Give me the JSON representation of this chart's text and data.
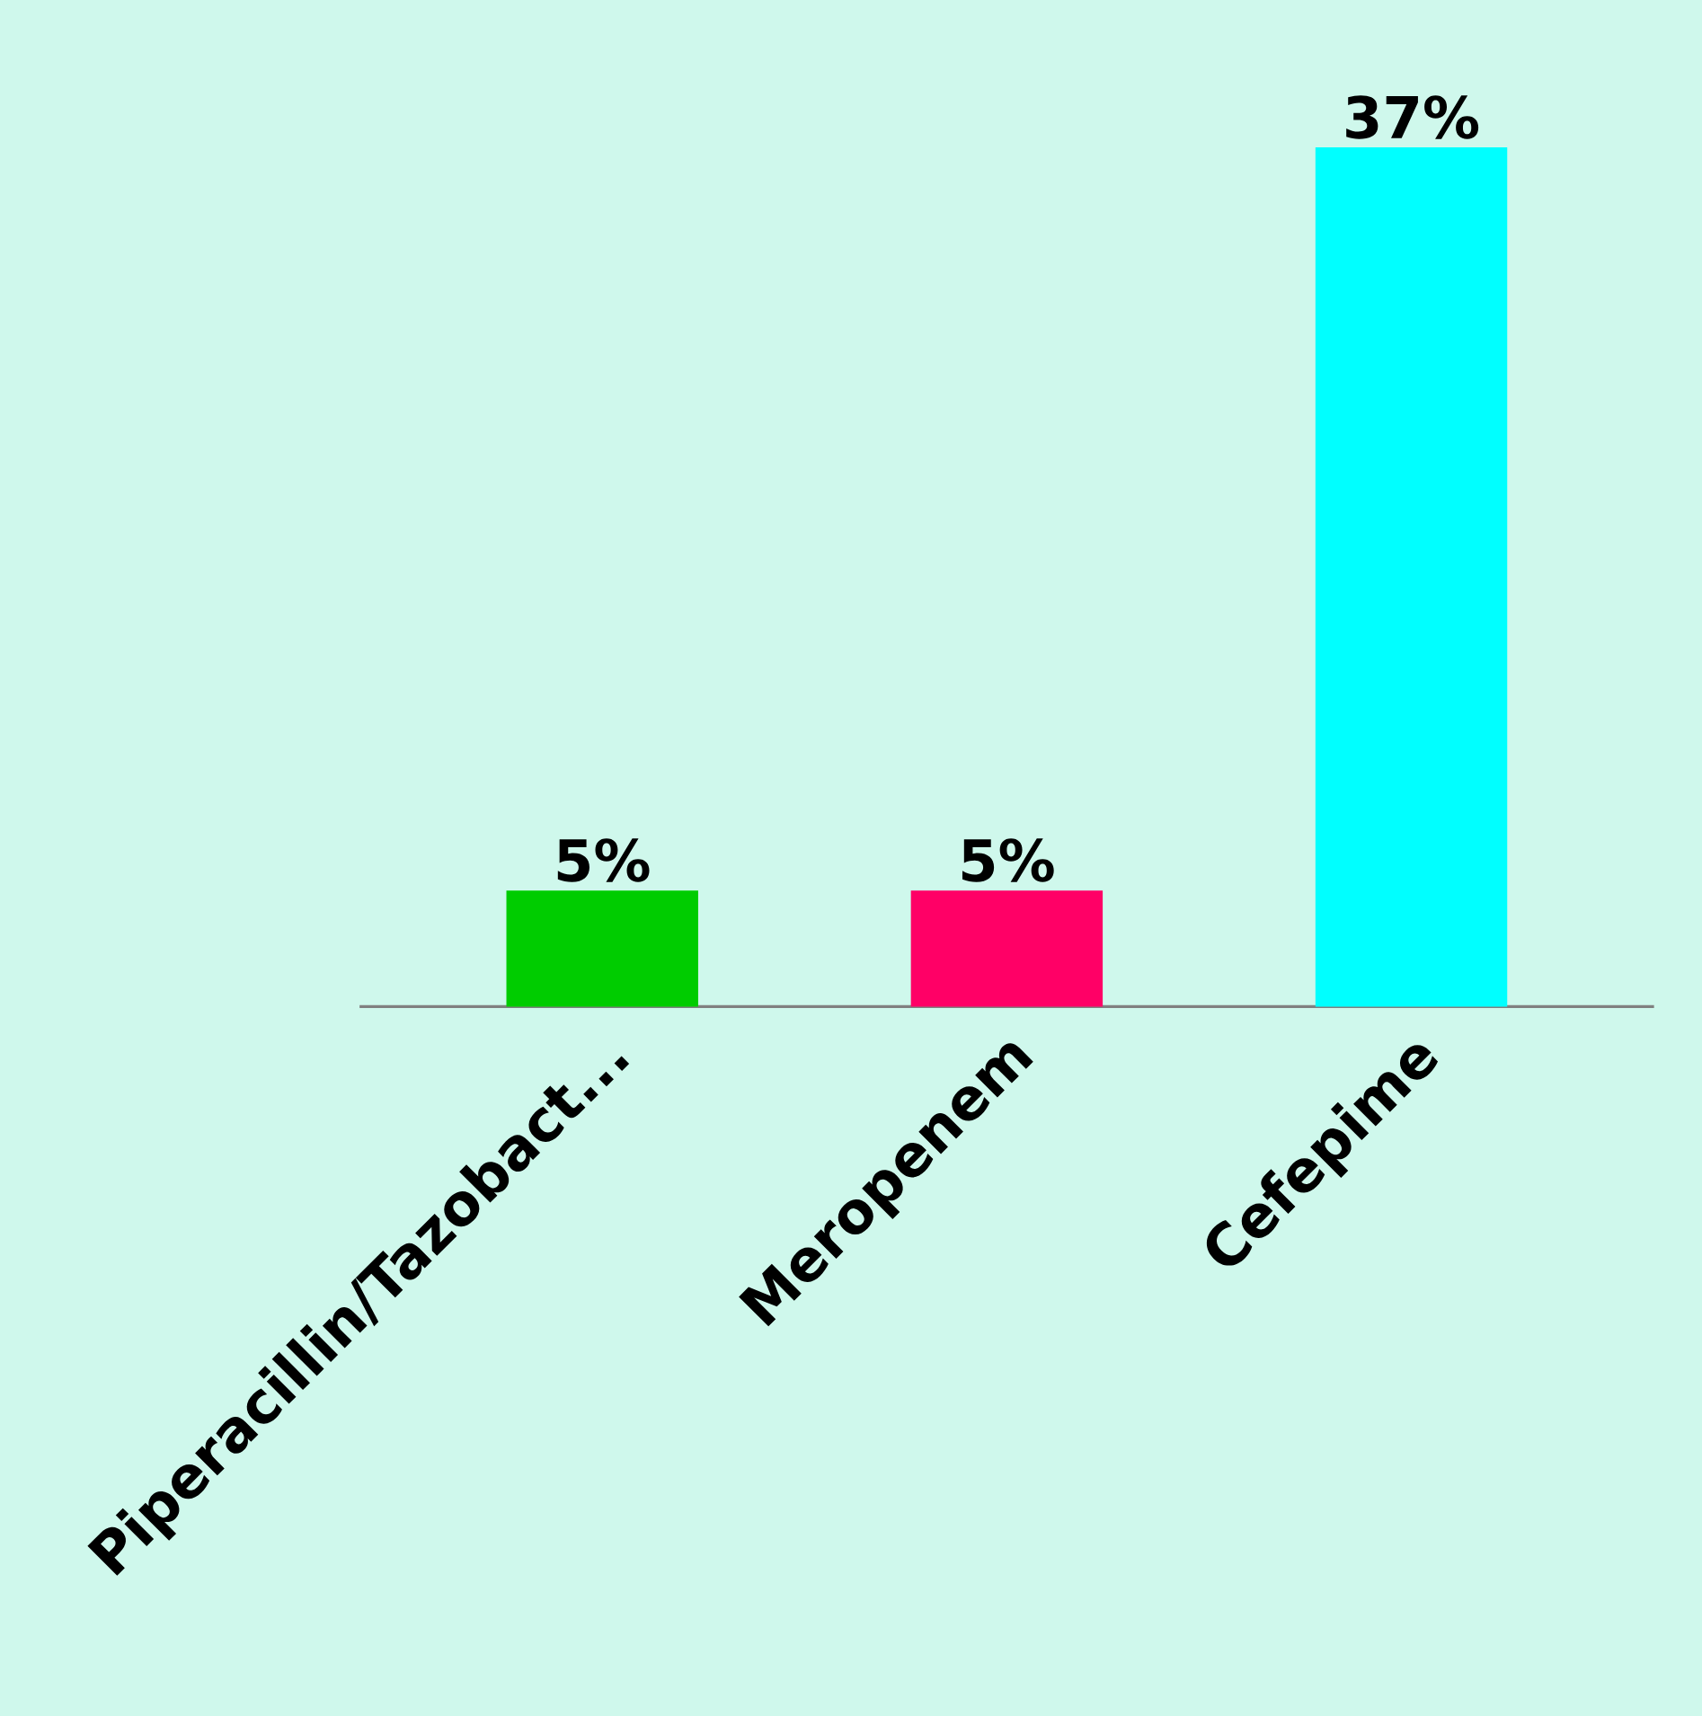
{
  "chart_data": {
    "type": "bar",
    "categories": [
      "Piperacillin/Tazobact...",
      "Meropenem",
      "Cefepime"
    ],
    "values": [
      5,
      5,
      37
    ],
    "colors": [
      "#00cc00",
      "#ff0066",
      "#00ffff"
    ],
    "value_labels": [
      "5%",
      "5%",
      "37%"
    ]
  }
}
